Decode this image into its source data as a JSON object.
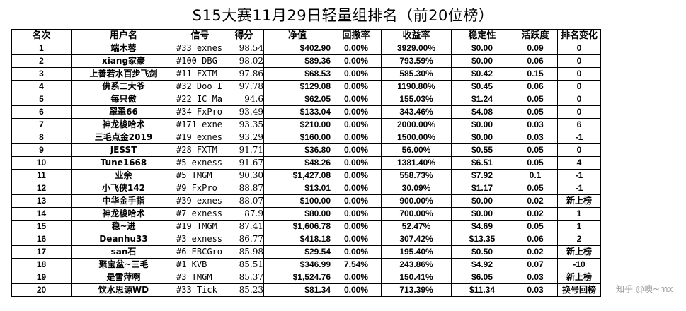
{
  "title": "S15大赛11月29日轻量组排名（前20位榜）",
  "headers": [
    "名次",
    "用户名",
    "信号",
    "得分",
    "净值",
    "回撤率",
    "收益率",
    "稳定性",
    "活跃度",
    "排名变化"
  ],
  "rows": [
    {
      "rank": "1",
      "user": "端木蓉",
      "signal": "#33 exnes",
      "score": "98.54",
      "nav": "$402.90",
      "drawdown": "0.00%",
      "return": "3929.00%",
      "stability": "$0.00",
      "activity": "0.09",
      "change": "0"
    },
    {
      "rank": "2",
      "user": "xiang家豪",
      "signal": "#100 DBG",
      "score": "98.02",
      "nav": "$89.36",
      "drawdown": "0.00%",
      "return": "793.59%",
      "stability": "$0.00",
      "activity": "0.06",
      "change": "0"
    },
    {
      "rank": "3",
      "user": "上善若水百步飞剑",
      "signal": "#11 FXTM",
      "score": "97.86",
      "nav": "$68.53",
      "drawdown": "0.00%",
      "return": "585.30%",
      "stability": "$0.42",
      "activity": "0.15",
      "change": "0"
    },
    {
      "rank": "4",
      "user": "佛系二大爷",
      "signal": "#32 Doo I",
      "score": "97.78",
      "nav": "$129.08",
      "drawdown": "0.00%",
      "return": "1190.80%",
      "stability": "$0.45",
      "activity": "0.06",
      "change": "0"
    },
    {
      "rank": "5",
      "user": "每只傲",
      "signal": "#22 IC Ma",
      "score": "94.6",
      "nav": "$62.05",
      "drawdown": "0.00%",
      "return": "155.03%",
      "stability": "$1.24",
      "activity": "0.05",
      "change": "0"
    },
    {
      "rank": "6",
      "user": "翠翠66",
      "signal": "#34 FxPro",
      "score": "93.49",
      "nav": "$133.04",
      "drawdown": "0.00%",
      "return": "343.46%",
      "stability": "$4.08",
      "activity": "0.05",
      "change": "0"
    },
    {
      "rank": "7",
      "user": "神龙梭哈术",
      "signal": "#171 exne",
      "score": "93.35",
      "nav": "$210.00",
      "drawdown": "0.00%",
      "return": "2000.00%",
      "stability": "$0.00",
      "activity": "0.03",
      "change": "6"
    },
    {
      "rank": "8",
      "user": "三毛点金2019",
      "signal": "#19 exnes",
      "score": "93.29",
      "nav": "$160.00",
      "drawdown": "0.00%",
      "return": "1500.00%",
      "stability": "$0.00",
      "activity": "0.03",
      "change": "-1"
    },
    {
      "rank": "9",
      "user": "JESST",
      "signal": "#28 FXTM",
      "score": "91.71",
      "nav": "$36.80",
      "drawdown": "0.00%",
      "return": "56.00%",
      "stability": "$0.55",
      "activity": "0.05",
      "change": "0"
    },
    {
      "rank": "10",
      "user": "Tune1668",
      "signal": "#5 exness",
      "score": "91.67",
      "nav": "$48.26",
      "drawdown": "0.00%",
      "return": "1381.40%",
      "stability": "$6.51",
      "activity": "0.05",
      "change": "4"
    },
    {
      "rank": "11",
      "user": "业余",
      "signal": "#5 TMGM",
      "score": "90.30",
      "nav": "$1,427.08",
      "drawdown": "0.00%",
      "return": "558.73%",
      "stability": "$7.92",
      "activity": "0.1",
      "change": "-1"
    },
    {
      "rank": "12",
      "user": "小飞侠142",
      "signal": "#9 FxPro",
      "score": "88.87",
      "nav": "$13.01",
      "drawdown": "0.00%",
      "return": "30.09%",
      "stability": "$1.17",
      "activity": "0.05",
      "change": "-1"
    },
    {
      "rank": "13",
      "user": "中华金手指",
      "signal": "#39 exnes",
      "score": "88.07",
      "nav": "$100.00",
      "drawdown": "0.00%",
      "return": "900.00%",
      "stability": "$0.00",
      "activity": "0.02",
      "change": "新上榜"
    },
    {
      "rank": "14",
      "user": "神龙梭哈术",
      "signal": "#7 exness",
      "score": "87.9",
      "nav": "$80.00",
      "drawdown": "0.00%",
      "return": "700.00%",
      "stability": "$0.00",
      "activity": "0.02",
      "change": "1"
    },
    {
      "rank": "15",
      "user": "稳~进",
      "signal": "#19 TMGM",
      "score": "87.41",
      "nav": "$1,606.78",
      "drawdown": "0.00%",
      "return": "52.47%",
      "stability": "$4.69",
      "activity": "0.05",
      "change": "1"
    },
    {
      "rank": "16",
      "user": "Deanhu33",
      "signal": "#3 exness",
      "score": "86.77",
      "nav": "$418.18",
      "drawdown": "0.00%",
      "return": "307.42%",
      "stability": "$13.35",
      "activity": "0.06",
      "change": "2"
    },
    {
      "rank": "17",
      "user": "san石",
      "signal": "#6 EBCGro",
      "score": "85.98",
      "nav": "$29.54",
      "drawdown": "0.00%",
      "return": "195.40%",
      "stability": "$0.50",
      "activity": "0.02",
      "change": "新上榜"
    },
    {
      "rank": "18",
      "user": "聚宝盆~三毛",
      "signal": "#1 KVB",
      "score": "85.51",
      "nav": "$346.99",
      "drawdown": "7.54%",
      "return": "243.86%",
      "stability": "$4.92",
      "activity": "0.07",
      "change": "-10"
    },
    {
      "rank": "19",
      "user": "是雪萍啊",
      "signal": "#3 TMGM",
      "score": "85.37",
      "nav": "$1,524.76",
      "drawdown": "0.00%",
      "return": "150.41%",
      "stability": "$6.05",
      "activity": "0.03",
      "change": "新上榜"
    },
    {
      "rank": "20",
      "user": "饮水思源WD",
      "signal": "#33 Tick",
      "score": "85.23",
      "nav": "$81.34",
      "drawdown": "0.00%",
      "return": "713.39%",
      "stability": "$11.34",
      "activity": "0.03",
      "change": "换号回榜"
    }
  ],
  "watermark": "知乎 @噢~mx"
}
